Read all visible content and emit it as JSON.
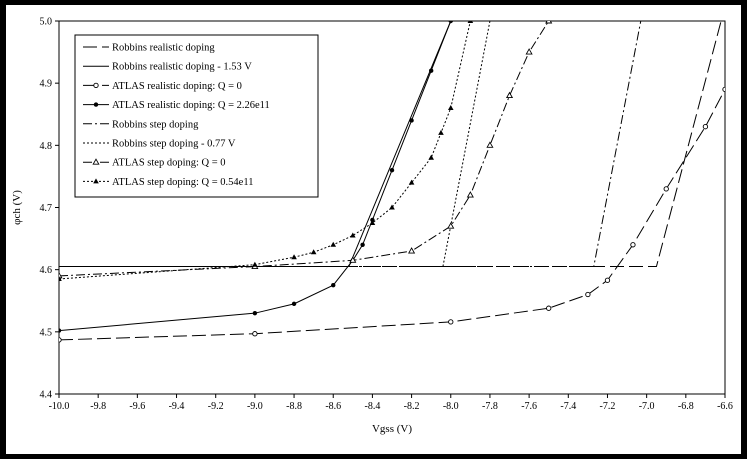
{
  "chart_data": {
    "type": "line",
    "xlabel": "Vgss (V)",
    "ylabel": "φch (V)",
    "xlim": [
      -10.0,
      -6.6
    ],
    "ylim": [
      4.4,
      5.0
    ],
    "x_ticks": [
      -10.0,
      -9.8,
      -9.6,
      -9.4,
      -9.2,
      -9.0,
      -8.8,
      -8.6,
      -8.4,
      -8.2,
      -8.0,
      -7.8,
      -7.6,
      -7.4,
      -7.2,
      -7.0,
      -6.8,
      -6.6
    ],
    "y_ticks": [
      4.4,
      4.5,
      4.6,
      4.7,
      4.8,
      4.9,
      5.0
    ],
    "x_tick_labels": [
      "-10.0",
      "-9.8",
      "-9.6",
      "-9.4",
      "-9.2",
      "-9.0",
      "-8.8",
      "-8.6",
      "-8.4",
      "-8.2",
      "-8.0",
      "-7.8",
      "-7.6",
      "-7.4",
      "-7.2",
      "-7.0",
      "-6.8",
      "-6.6"
    ],
    "y_tick_labels": [
      "4.4",
      "4.5",
      "4.6",
      "4.7",
      "4.8",
      "4.9",
      "5.0"
    ],
    "grid": false,
    "legend_position": "top-left",
    "series": [
      {
        "name": "Robbins realistic doping",
        "style": "longdash",
        "marker": "none",
        "x": [
          -10.0,
          -6.95,
          -6.62
        ],
        "y": [
          4.605,
          4.605,
          5.0
        ]
      },
      {
        "name": "Robbins realistic doping - 1.53 V",
        "style": "solid",
        "marker": "none",
        "x": [
          -10.0,
          -8.52,
          -8.0
        ],
        "y": [
          4.605,
          4.605,
          5.0
        ]
      },
      {
        "name": "ATLAS realistic doping: Q = 0",
        "style": "longdash",
        "marker": "open-circle",
        "x": [
          -10.0,
          -9.0,
          -8.0,
          -7.5,
          -7.3,
          -7.2,
          -7.07,
          -6.9,
          -6.7,
          -6.6
        ],
        "y": [
          4.487,
          4.497,
          4.516,
          4.538,
          4.56,
          4.583,
          4.64,
          4.73,
          4.83,
          4.89
        ]
      },
      {
        "name": "ATLAS realistic doping: Q = 2.26e11",
        "style": "solid",
        "marker": "filled-circle",
        "x": [
          -10.0,
          -9.0,
          -8.8,
          -8.6,
          -8.5,
          -8.45,
          -8.4,
          -8.3,
          -8.2,
          -8.1,
          -8.0
        ],
        "y": [
          4.502,
          4.53,
          4.545,
          4.575,
          4.615,
          4.64,
          4.68,
          4.76,
          4.84,
          4.92,
          5.0
        ]
      },
      {
        "name": "Robbins step doping",
        "style": "dashdot",
        "marker": "none",
        "x": [
          -10.0,
          -7.27,
          -7.03
        ],
        "y": [
          4.605,
          4.605,
          5.0
        ]
      },
      {
        "name": "Robbins step doping - 0.77 V",
        "style": "dotted",
        "marker": "none",
        "x": [
          -10.0,
          -8.04,
          -7.8
        ],
        "y": [
          4.605,
          4.605,
          5.0
        ]
      },
      {
        "name": "ATLAS step doping: Q = 0",
        "style": "dashdot",
        "marker": "open-triangle",
        "x": [
          -10.0,
          -9.0,
          -8.5,
          -8.2,
          -8.0,
          -7.9,
          -7.8,
          -7.7,
          -7.6,
          -7.5
        ],
        "y": [
          4.59,
          4.605,
          4.615,
          4.63,
          4.67,
          4.72,
          4.8,
          4.88,
          4.95,
          5.0
        ]
      },
      {
        "name": "ATLAS step doping: Q = 0.54e11",
        "style": "dotted",
        "marker": "filled-triangle",
        "x": [
          -10.0,
          -9.0,
          -8.8,
          -8.7,
          -8.6,
          -8.5,
          -8.4,
          -8.3,
          -8.2,
          -8.1,
          -8.05,
          -8.0,
          -7.9
        ],
        "y": [
          4.585,
          4.608,
          4.62,
          4.628,
          4.64,
          4.655,
          4.675,
          4.7,
          4.74,
          4.78,
          4.82,
          4.86,
          5.0
        ]
      }
    ]
  }
}
